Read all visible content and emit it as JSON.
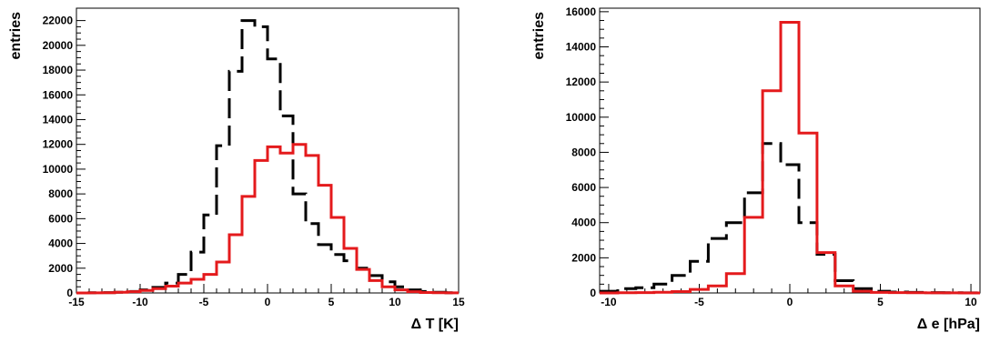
{
  "chart_data": [
    {
      "type": "histogram",
      "xlabel": "Δ T [K]",
      "ylabel": "entries",
      "xlim": [
        -15,
        15
      ],
      "ylim": [
        0,
        23000
      ],
      "grid": false,
      "x_ticks": [
        -15,
        -10,
        -5,
        0,
        5,
        10,
        15
      ],
      "y_ticks": [
        0,
        2000,
        4000,
        6000,
        8000,
        10000,
        12000,
        14000,
        16000,
        18000,
        20000,
        22000
      ],
      "bin_width": 1,
      "series": [
        {
          "style": "dashed",
          "color": "#000000",
          "bin_edges_start": -15,
          "values": [
            0,
            20,
            30,
            60,
            120,
            250,
            450,
            800,
            1500,
            3300,
            6300,
            11900,
            17900,
            22000,
            21500,
            18900,
            14300,
            8000,
            5600,
            3900,
            3100,
            2600,
            2000,
            1400,
            900,
            500,
            250,
            120,
            60,
            20
          ]
        },
        {
          "style": "solid",
          "color": "#e41a1c",
          "bin_edges_start": -15,
          "values": [
            0,
            10,
            20,
            50,
            100,
            200,
            350,
            550,
            800,
            1100,
            1500,
            2500,
            4700,
            7800,
            10700,
            11800,
            11300,
            12000,
            11100,
            8700,
            6100,
            3600,
            1900,
            1000,
            500,
            250,
            100,
            40,
            15,
            5
          ]
        }
      ]
    },
    {
      "type": "histogram",
      "xlabel": "Δ e [hPa]",
      "ylabel": "entries",
      "xlim": [
        -10.5,
        10.5
      ],
      "ylim": [
        0,
        16200
      ],
      "grid": false,
      "x_ticks": [
        -10,
        -5,
        0,
        5,
        10
      ],
      "y_ticks": [
        0,
        2000,
        4000,
        6000,
        8000,
        10000,
        12000,
        14000,
        16000
      ],
      "bin_width": 1,
      "series": [
        {
          "style": "dashed",
          "color": "#000000",
          "bin_edges_start": -10.5,
          "values": [
            100,
            250,
            300,
            500,
            1000,
            1800,
            3100,
            4000,
            5700,
            8500,
            7300,
            4000,
            2200,
            700,
            250,
            100,
            50,
            30,
            20,
            10,
            5
          ]
        },
        {
          "style": "solid",
          "color": "#e41a1c",
          "bin_edges_start": -10.5,
          "values": [
            0,
            10,
            20,
            40,
            80,
            200,
            400,
            1100,
            4300,
            11500,
            15400,
            9100,
            2300,
            400,
            100,
            30,
            20,
            10,
            5,
            3,
            1
          ]
        }
      ]
    }
  ]
}
